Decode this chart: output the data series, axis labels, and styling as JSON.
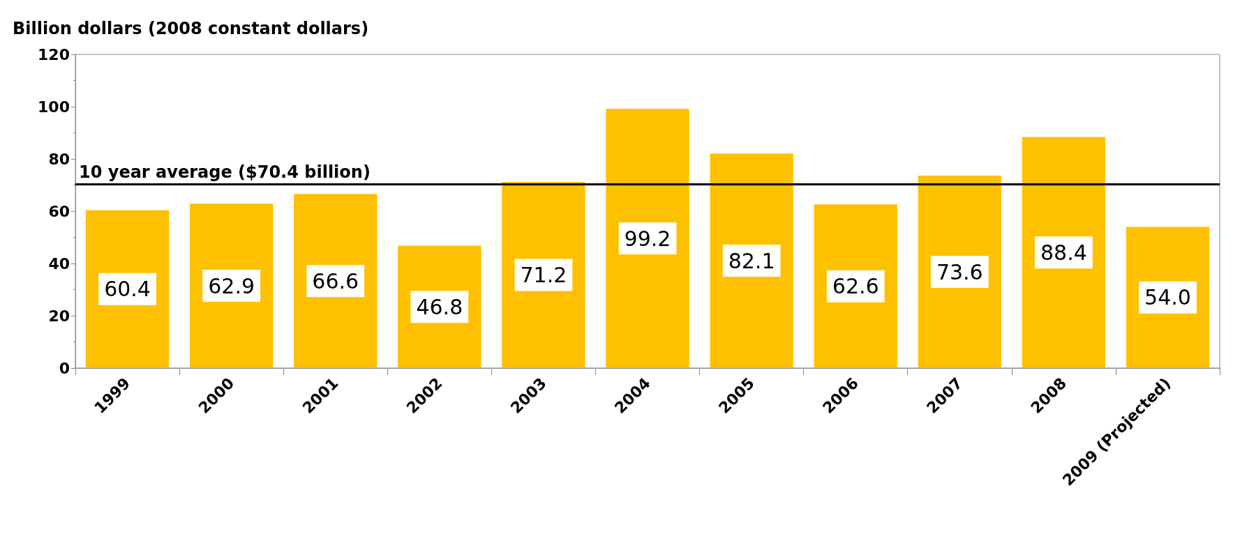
{
  "chart_data": {
    "type": "bar",
    "ylabel": "Billion dollars (2008 constant dollars)",
    "categories": [
      "1999",
      "2000",
      "2001",
      "2002",
      "2003",
      "2004",
      "2005",
      "2006",
      "2007",
      "2008",
      "2009 (Projected)"
    ],
    "values": [
      60.4,
      62.9,
      66.6,
      46.8,
      71.2,
      99.2,
      82.1,
      62.6,
      73.6,
      88.4,
      54.0
    ],
    "value_labels": [
      "60.4",
      "62.9",
      "66.6",
      "46.8",
      "71.2",
      "99.2",
      "82.1",
      "62.6",
      "73.6",
      "88.4",
      "54.0"
    ],
    "color": "#ffc000",
    "ylim": [
      0,
      120
    ],
    "yticks": [
      0,
      20,
      40,
      60,
      80,
      100,
      120
    ],
    "grid": false,
    "ref_lines": [
      {
        "axis": "y",
        "value": 70.4,
        "label": "10 year average ($70.4 billion)",
        "color": "#000000"
      }
    ]
  }
}
